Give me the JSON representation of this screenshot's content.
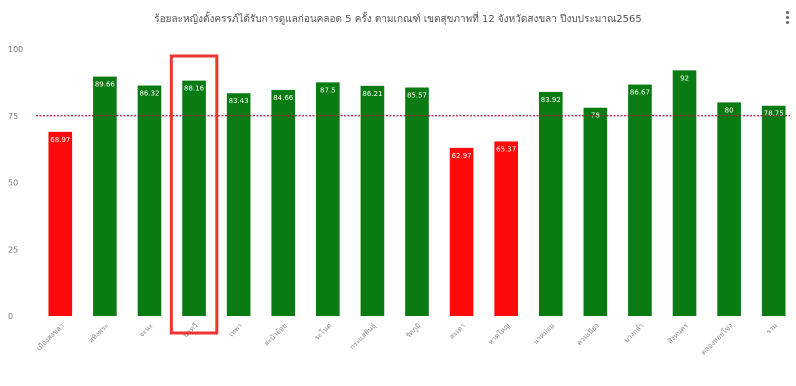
{
  "chart_data": {
    "type": "bar",
    "title": "ร้อยละหญิงตั้งครรภ์ได้รับการดูแลก่อนคลอด 5 ครั้ง ตามเกณฑ์ เขตสุขภาพที่ 12 จังหวัดสงขลา ปีงบประมาณ2565",
    "xlabel": "",
    "ylabel": "",
    "ylim": [
      0,
      100
    ],
    "yticks": [
      0,
      25,
      50,
      75,
      100
    ],
    "grid": false,
    "target": 75,
    "categories": [
      "เมืองสงขลา",
      "สทิงพระ",
      "จะนะ",
      "นาทวี",
      "เทพา",
      "สะบ้าย้อย",
      "ระโนด",
      "กระแสสินธุ์",
      "รัตภูมิ",
      "สะเดา",
      "หาดใหญ่",
      "นาหม่อม",
      "ควนเนียง",
      "บางกล่ำ",
      "สิงหนคร",
      "คลองหอยโข่ง",
      "รวม"
    ],
    "values": [
      68.97,
      89.66,
      86.32,
      88.16,
      83.43,
      84.66,
      87.5,
      86.21,
      85.57,
      62.97,
      65.37,
      83.92,
      78,
      86.67,
      92,
      80,
      78.75
    ],
    "data_labels": [
      "68.97",
      "89.66",
      "86.32",
      "88.16",
      "83.43",
      "84.66",
      "87.5",
      "86.21",
      "85.57",
      "62.97",
      "65.37",
      "83.92",
      "78",
      "86.67",
      "92",
      "80",
      "78.75"
    ],
    "colors": [
      "red",
      "green",
      "green",
      "green",
      "green",
      "green",
      "green",
      "green",
      "green",
      "red",
      "red",
      "green",
      "green",
      "green",
      "green",
      "green",
      "green"
    ],
    "palette": {
      "green": "#0a7a12",
      "red": "#ff0a0a",
      "target_line": "#a02040",
      "highlight": "#ee3333"
    },
    "highlight_index": 3
  }
}
